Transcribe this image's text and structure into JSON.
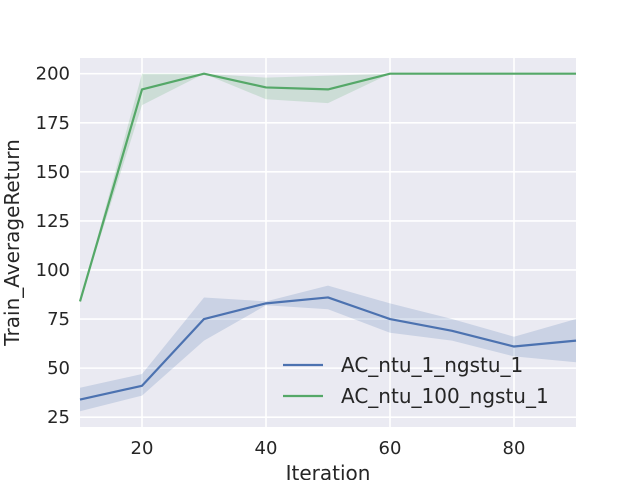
{
  "chart_data": {
    "type": "line",
    "xlabel": "Iteration",
    "ylabel": "Train_AverageReturn",
    "xlim": [
      10,
      90
    ],
    "ylim": [
      20,
      208
    ],
    "x_ticks": [
      20,
      40,
      60,
      80
    ],
    "y_ticks": [
      25,
      50,
      75,
      100,
      125,
      150,
      175,
      200
    ],
    "grid": true,
    "legend_position": "lower-right",
    "x": [
      10,
      20,
      30,
      40,
      50,
      60,
      70,
      80,
      90
    ],
    "series": [
      {
        "name": "AC_ntu_1_ngstu_1",
        "color": "#4c72b0",
        "values": [
          34,
          41,
          75,
          83,
          86,
          75,
          69,
          61,
          64
        ],
        "lower": [
          28,
          36,
          64,
          82,
          80,
          68,
          64,
          56,
          53
        ],
        "upper": [
          40,
          47,
          86,
          84,
          92,
          83,
          75,
          66,
          75
        ]
      },
      {
        "name": "AC_ntu_100_ngstu_1",
        "color": "#55a868",
        "values": [
          84,
          192,
          200,
          193,
          192,
          200,
          200,
          200,
          200
        ],
        "lower": [
          84,
          184,
          200,
          187,
          185,
          200,
          200,
          200,
          200
        ],
        "upper": [
          84,
          200,
          200,
          198,
          199,
          200,
          200,
          200,
          200
        ]
      }
    ]
  }
}
